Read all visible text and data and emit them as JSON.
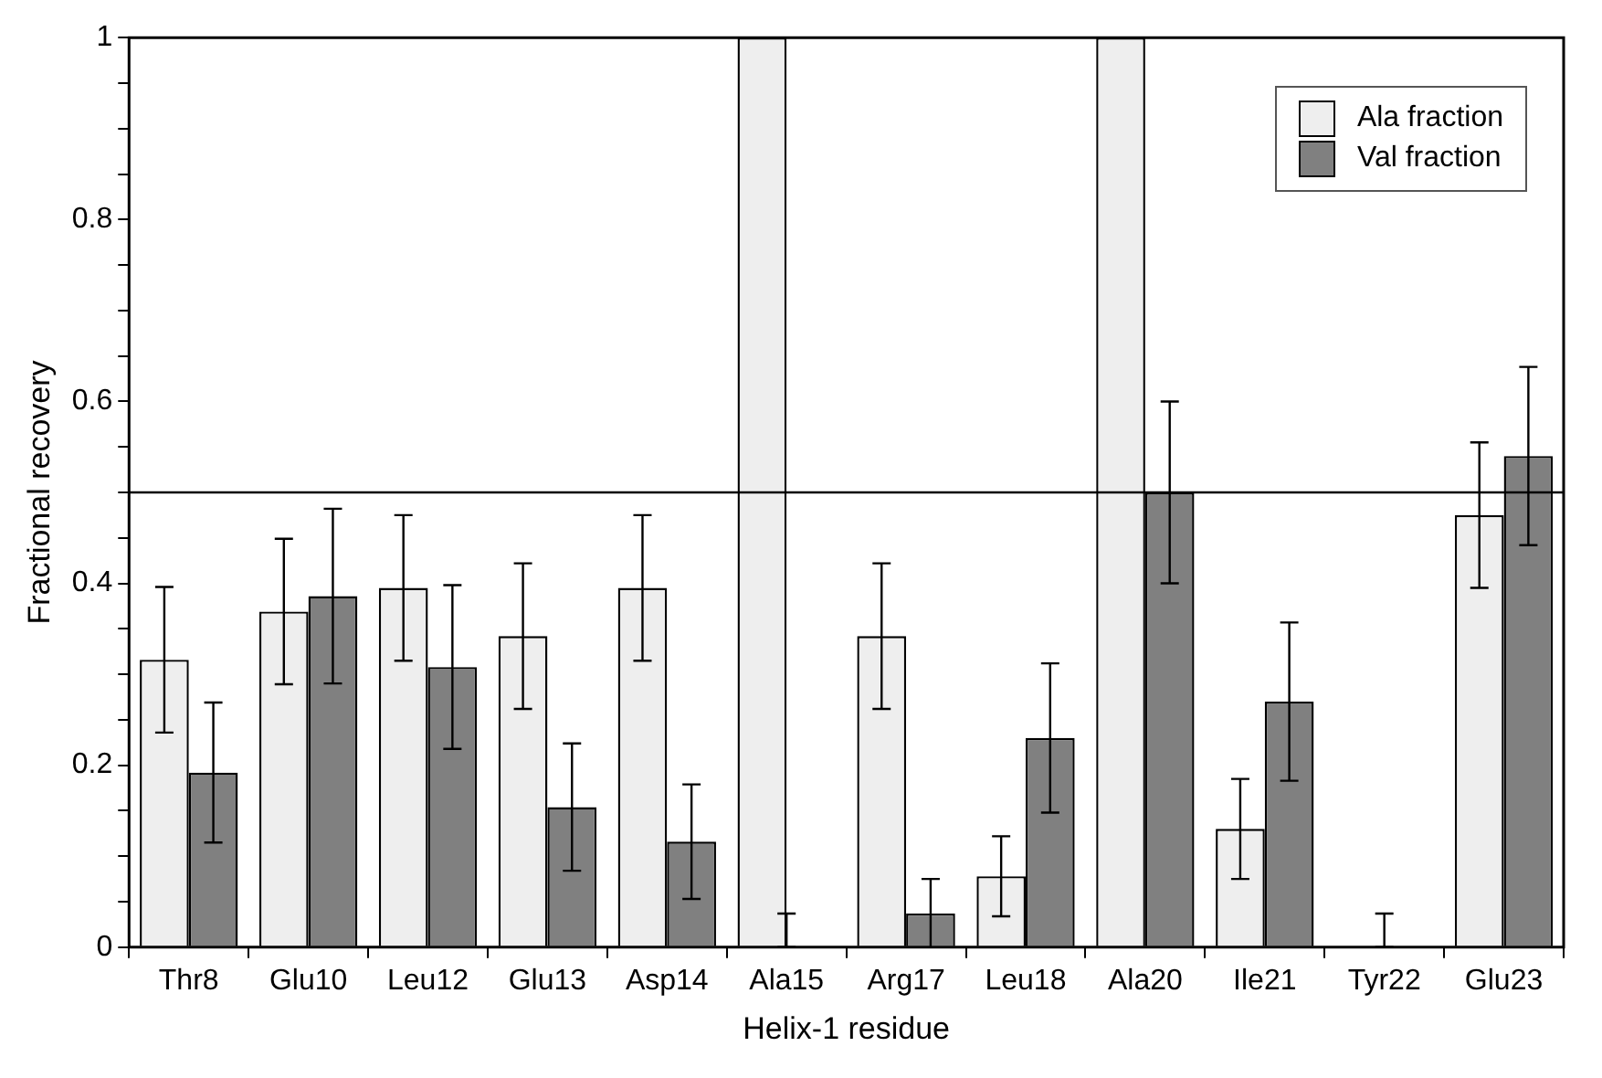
{
  "chart_data": {
    "type": "bar",
    "xlabel": "Helix-1 residue",
    "ylabel": "Fractional recovery",
    "categories": [
      "Thr8",
      "Glu10",
      "Leu12",
      "Glu13",
      "Asp14",
      "Ala15",
      "Arg17",
      "Leu18",
      "Ala20",
      "Ile21",
      "Tyr22",
      "Glu23"
    ],
    "series": [
      {
        "name": "Ala fraction",
        "color": "#eeeeee",
        "values": [
          0.316,
          0.369,
          0.395,
          0.342,
          0.395,
          1,
          0.342,
          0.078,
          1,
          0.13,
          0,
          0.475
        ],
        "errors": [
          0.08,
          0.08,
          0.08,
          0.08,
          0.08,
          null,
          0.08,
          0.044,
          null,
          0.055,
          null,
          0.08
        ]
      },
      {
        "name": "Val fraction",
        "color": "#808080",
        "values": [
          0.192,
          0.386,
          0.308,
          0.154,
          0.116,
          0,
          0.037,
          0.23,
          0.5,
          0.27,
          0,
          0.54
        ],
        "errors": [
          0.077,
          0.096,
          0.09,
          0.07,
          0.063,
          [
            0,
            0.037
          ],
          0.038,
          0.082,
          0.1,
          0.087,
          [
            0,
            0.037
          ],
          0.098
        ]
      }
    ],
    "ylim": [
      0,
      1
    ],
    "yticks": [
      0,
      {
        "value": 0.05,
        "label": null
      },
      {
        "value": 0.1,
        "label": null
      },
      {
        "value": 0.15,
        "label": null
      },
      0.2,
      {
        "value": 0.25,
        "label": null
      },
      {
        "value": 0.3,
        "label": null
      },
      {
        "value": 0.35,
        "label": null
      },
      0.4,
      {
        "value": 0.45,
        "label": null
      },
      {
        "value": 0.5,
        "label": null
      },
      {
        "value": 0.55,
        "label": null
      },
      0.6,
      {
        "value": 0.65,
        "label": null
      },
      {
        "value": 0.7,
        "label": null
      },
      {
        "value": 0.75,
        "label": null
      },
      0.8,
      {
        "value": 0.85,
        "label": null
      },
      {
        "value": 0.9,
        "label": null
      },
      {
        "value": 0.95,
        "label": null
      },
      1
    ],
    "ref_lines": [
      {
        "axis": "y",
        "value": 0.5,
        "color": "#000000"
      }
    ],
    "legend": "top right",
    "grid": false
  }
}
